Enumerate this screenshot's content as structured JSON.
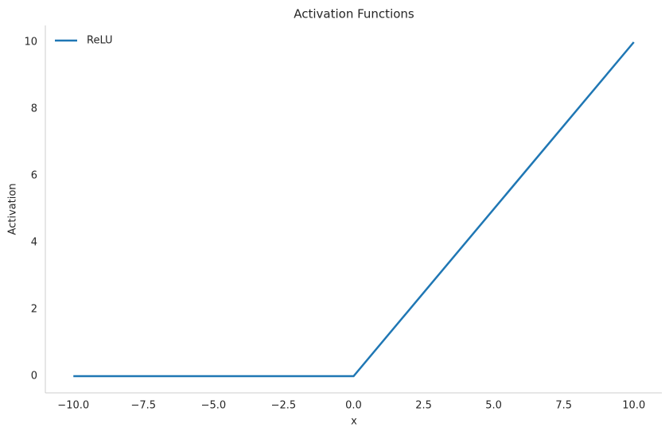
{
  "chart_data": {
    "type": "line",
    "title": "Activation Functions",
    "x_label": "x",
    "y_label": "Activation",
    "x": [
      -10,
      0,
      10
    ],
    "series": [
      {
        "name": "ReLU",
        "color": "#1f77b4",
        "values": [
          0,
          0,
          10
        ]
      }
    ],
    "xlim": [
      -11,
      11
    ],
    "ylim": [
      -0.5,
      10.5
    ],
    "xticks": [
      {
        "value": -10,
        "label": "−10.0"
      },
      {
        "value": -7.5,
        "label": "−7.5"
      },
      {
        "value": -5,
        "label": "−5.0"
      },
      {
        "value": -2.5,
        "label": "−2.5"
      },
      {
        "value": 0,
        "label": "0.0"
      },
      2.5,
      {
        "value": 5,
        "label": "5.0"
      },
      7.5,
      {
        "value": 10,
        "label": "10.0"
      }
    ],
    "yticks": [
      0,
      2,
      4,
      6,
      8,
      10
    ],
    "grid": false,
    "legend": "upper-left"
  }
}
